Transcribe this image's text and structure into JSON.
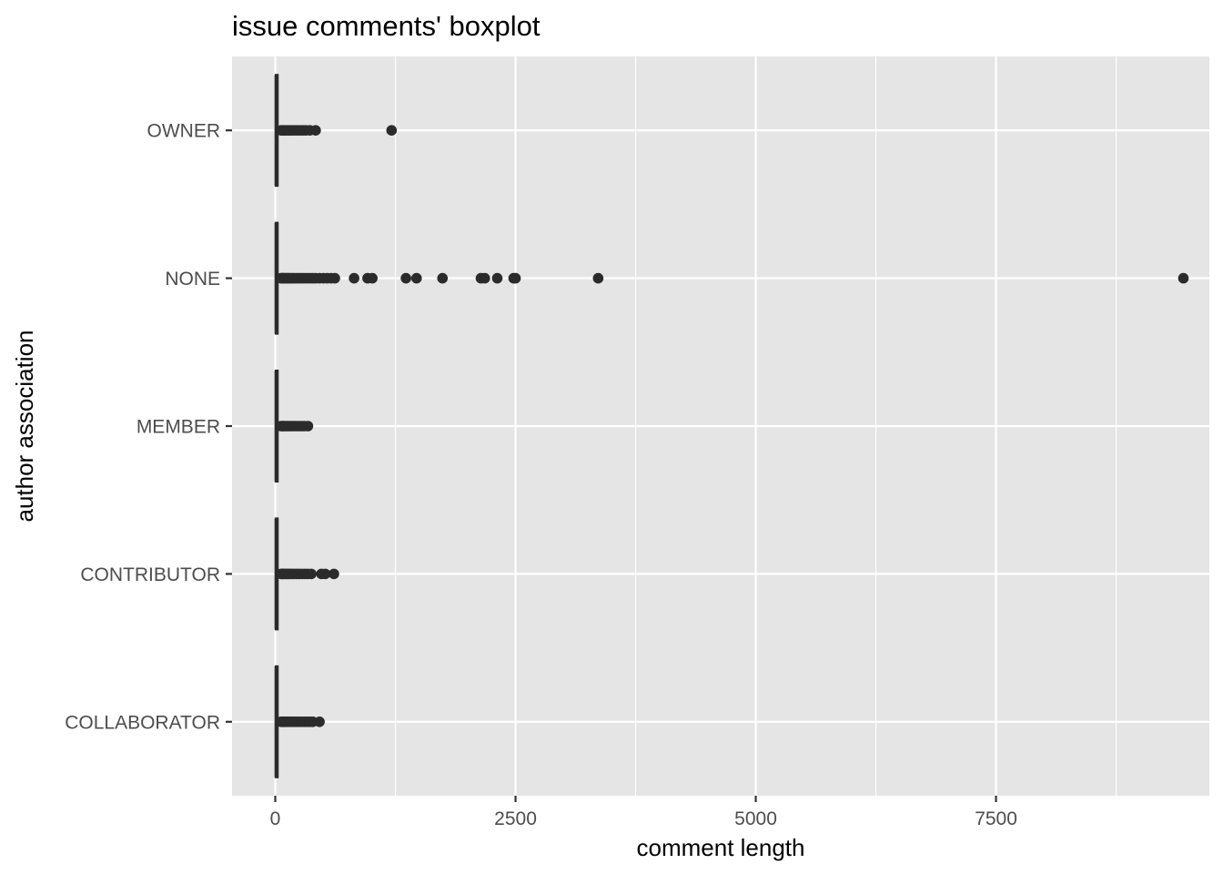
{
  "chart_data": {
    "type": "boxplot",
    "orientation": "horizontal",
    "title": "issue comments' boxplot",
    "xlabel": "comment length",
    "ylabel": "author association",
    "xlim": [
      -450,
      9720
    ],
    "x_ticks": [
      0,
      2500,
      5000,
      7500
    ],
    "x_tick_labels": [
      "0",
      "2500",
      "5000",
      "7500"
    ],
    "categories": [
      "COLLABORATOR",
      "CONTRIBUTOR",
      "MEMBER",
      "NONE",
      "OWNER"
    ],
    "grid": true,
    "legend": "none",
    "colors": {
      "panel": "#e5e5e5",
      "grid": "#ffffff",
      "mark": "#2b2b2b",
      "tick_text": "#4d4d4d"
    },
    "series": [
      {
        "category": "COLLABORATOR",
        "box": {
          "min": 0,
          "q1": 5,
          "median": 12,
          "q3": 25,
          "max": 55
        },
        "outliers": [
          60,
          70,
          80,
          90,
          100,
          115,
          130,
          150,
          170,
          190,
          215,
          240,
          270,
          300,
          330,
          360,
          390,
          460
        ]
      },
      {
        "category": "CONTRIBUTOR",
        "box": {
          "min": 0,
          "q1": 5,
          "median": 12,
          "q3": 25,
          "max": 55
        },
        "outliers": [
          60,
          70,
          80,
          95,
          110,
          125,
          140,
          160,
          180,
          200,
          225,
          250,
          280,
          310,
          340,
          375,
          480,
          520,
          610
        ]
      },
      {
        "category": "MEMBER",
        "box": {
          "min": 0,
          "q1": 5,
          "median": 12,
          "q3": 25,
          "max": 55
        },
        "outliers": [
          60,
          75,
          90,
          110,
          130,
          155,
          180,
          210,
          240,
          270,
          300,
          340
        ]
      },
      {
        "category": "NONE",
        "box": {
          "min": 0,
          "q1": 5,
          "median": 12,
          "q3": 25,
          "max": 55
        },
        "outliers": [
          60,
          70,
          80,
          95,
          110,
          125,
          140,
          160,
          180,
          200,
          225,
          250,
          275,
          300,
          330,
          360,
          390,
          420,
          460,
          500,
          540,
          580,
          620,
          820,
          960,
          1010,
          1360,
          1470,
          1740,
          2140,
          2180,
          2310,
          2480,
          2500,
          3360,
          9450
        ]
      },
      {
        "category": "OWNER",
        "box": {
          "min": 0,
          "q1": 5,
          "median": 12,
          "q3": 25,
          "max": 55
        },
        "outliers": [
          60,
          75,
          90,
          110,
          130,
          150,
          175,
          200,
          230,
          260,
          290,
          320,
          360,
          420,
          1210
        ]
      }
    ]
  }
}
